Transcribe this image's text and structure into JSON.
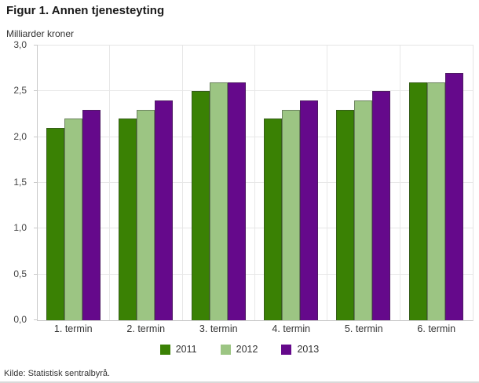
{
  "page": {
    "title": "Figur 1. Annen tjenesteyting",
    "unit_label": "Milliarder kroner",
    "source": "Kilde: Statistisk sentralbyrå."
  },
  "chart_data": {
    "type": "bar",
    "title": "Figur 1. Annen tjenesteyting",
    "ylabel": "Milliarder kroner",
    "categories": [
      "1. termin",
      "2. termin",
      "3. termin",
      "4. termin",
      "5. termin",
      "6. termin"
    ],
    "series": [
      {
        "name": "2011",
        "color": "#3a8104",
        "values": [
          2.1,
          2.2,
          2.5,
          2.2,
          2.3,
          2.6
        ]
      },
      {
        "name": "2012",
        "color": "#9cc583",
        "values": [
          2.2,
          2.3,
          2.6,
          2.3,
          2.4,
          2.6
        ]
      },
      {
        "name": "2013",
        "color": "#65098b",
        "values": [
          2.3,
          2.4,
          2.6,
          2.4,
          2.5,
          2.7
        ]
      }
    ],
    "ylim": [
      0,
      3.0
    ],
    "ytick_step": 0.5,
    "ytick_labels": [
      "0,0",
      "0,5",
      "1,0",
      "1,5",
      "2,0",
      "2,5",
      "3,0"
    ],
    "grid": true,
    "legend_position": "bottom",
    "gridline_color": "#e7e7e7",
    "axis_color": "#c9c9c9"
  }
}
